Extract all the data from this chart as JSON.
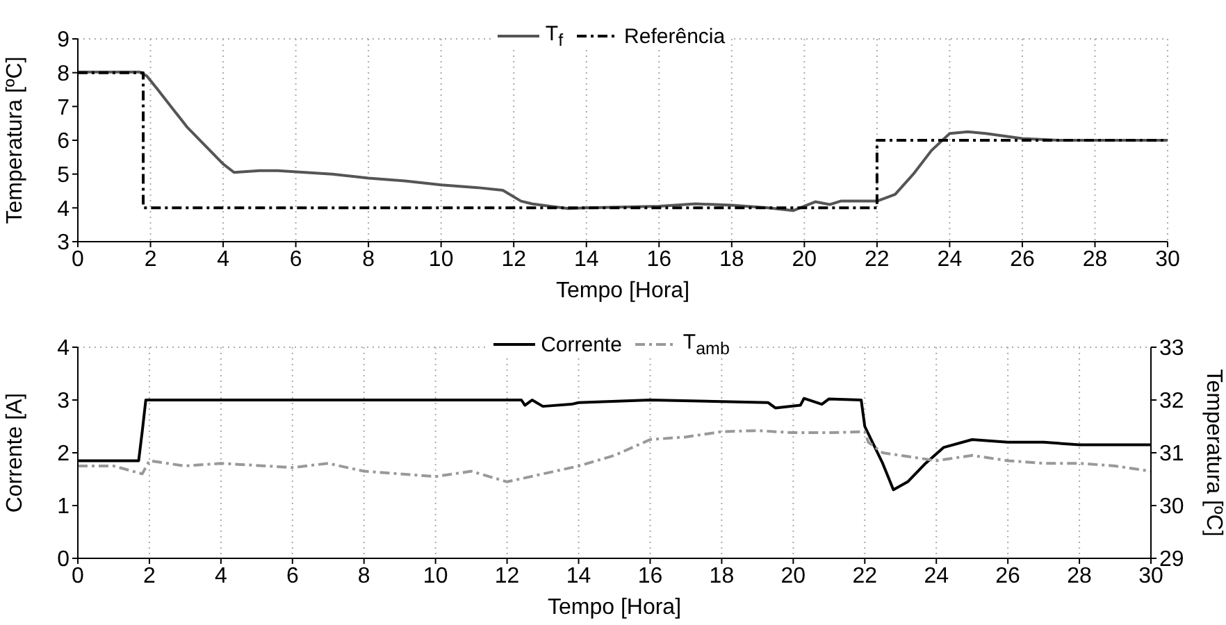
{
  "chart_data": [
    {
      "type": "line",
      "xlabel": "Tempo [Hora]",
      "ylabel": "Temperatura [ºC]",
      "xlim": [
        0,
        30
      ],
      "xticks": [
        0,
        2,
        4,
        6,
        8,
        10,
        12,
        14,
        16,
        18,
        20,
        22,
        24,
        26,
        28,
        30
      ],
      "ylim": [
        3,
        9
      ],
      "yticks": [
        3,
        4,
        5,
        6,
        7,
        8,
        9
      ],
      "grid": true,
      "legend": "top",
      "series": [
        {
          "name": "T$_{f}$",
          "color": "#555555",
          "line_style": "solid",
          "x": [
            0,
            1.7,
            1.9,
            2.2,
            3,
            4,
            4.3,
            5,
            5.5,
            7,
            8,
            9,
            10,
            11,
            11.7,
            12.2,
            12.5,
            13,
            13.5,
            14,
            16,
            17,
            18,
            19,
            19.7,
            20.3,
            20.7,
            21,
            22,
            22.5,
            23,
            23.5,
            24,
            24.5,
            25,
            26,
            27,
            28,
            30
          ],
          "values": [
            8.02,
            8.02,
            7.9,
            7.5,
            6.4,
            5.3,
            5.05,
            5.1,
            5.1,
            5.0,
            4.88,
            4.8,
            4.68,
            4.6,
            4.52,
            4.2,
            4.12,
            4.05,
            3.98,
            4.0,
            4.05,
            4.12,
            4.08,
            4.0,
            3.92,
            4.18,
            4.1,
            4.2,
            4.2,
            4.4,
            5.0,
            5.7,
            6.2,
            6.25,
            6.2,
            6.05,
            6.0,
            6.0,
            6.0
          ]
        },
        {
          "name": "Referência",
          "type": "step",
          "color": "#000000",
          "line_style": "dashed",
          "x": [
            0,
            1.8,
            22,
            30
          ],
          "values": [
            8,
            4,
            6,
            6
          ]
        }
      ]
    },
    {
      "type": "line",
      "xlabel": "Tempo [Hora]",
      "ylabel": "Corrente [A]",
      "y2label": "Temperatura [ºC]",
      "xlim": [
        0,
        30
      ],
      "xticks": [
        0,
        2,
        4,
        6,
        8,
        10,
        12,
        14,
        16,
        18,
        20,
        22,
        24,
        26,
        28,
        30
      ],
      "ylim": [
        0,
        4
      ],
      "yticks": [
        0,
        1,
        2,
        3,
        4
      ],
      "y2lim": [
        29,
        33
      ],
      "y2ticks": [
        29,
        30,
        31,
        32,
        33
      ],
      "grid": true,
      "legend": "top",
      "series": [
        {
          "name": "Corrente",
          "color": "#000000",
          "line_style": "solid",
          "x": [
            0,
            1.7,
            1.8,
            1.9,
            12.4,
            12.5,
            12.7,
            13,
            13.8,
            14,
            16,
            19.3,
            19.5,
            20.2,
            20.3,
            20.8,
            21,
            21.9,
            22,
            22.5,
            22.8,
            23.2,
            23.7,
            24.2,
            25,
            26,
            27,
            28,
            30
          ],
          "values": [
            1.85,
            1.85,
            2.4,
            3.0,
            3.0,
            2.9,
            3.0,
            2.88,
            2.92,
            2.95,
            3.0,
            2.95,
            2.85,
            2.9,
            3.03,
            2.92,
            3.02,
            3.0,
            2.5,
            1.8,
            1.3,
            1.45,
            1.8,
            2.1,
            2.25,
            2.2,
            2.2,
            2.15,
            2.15
          ]
        },
        {
          "name": "T$_{amb}$",
          "color": "#999999",
          "line_style": "dashed",
          "axis": "y2",
          "x": [
            0,
            1,
            1.8,
            2,
            3,
            4,
            6,
            7,
            8,
            10,
            11,
            12,
            13,
            14,
            15,
            15.5,
            16,
            17,
            18,
            19,
            20,
            21,
            22,
            22.1,
            22.5,
            23,
            24,
            25,
            26,
            27,
            28,
            29,
            30
          ],
          "values": [
            30.75,
            30.75,
            30.6,
            30.85,
            30.75,
            30.8,
            30.72,
            30.8,
            30.65,
            30.55,
            30.65,
            30.45,
            30.6,
            30.75,
            30.95,
            31.1,
            31.25,
            31.3,
            31.4,
            31.42,
            31.38,
            31.38,
            31.4,
            31.2,
            31.0,
            30.95,
            30.85,
            30.95,
            30.85,
            30.8,
            30.8,
            30.75,
            30.65
          ]
        }
      ]
    }
  ]
}
